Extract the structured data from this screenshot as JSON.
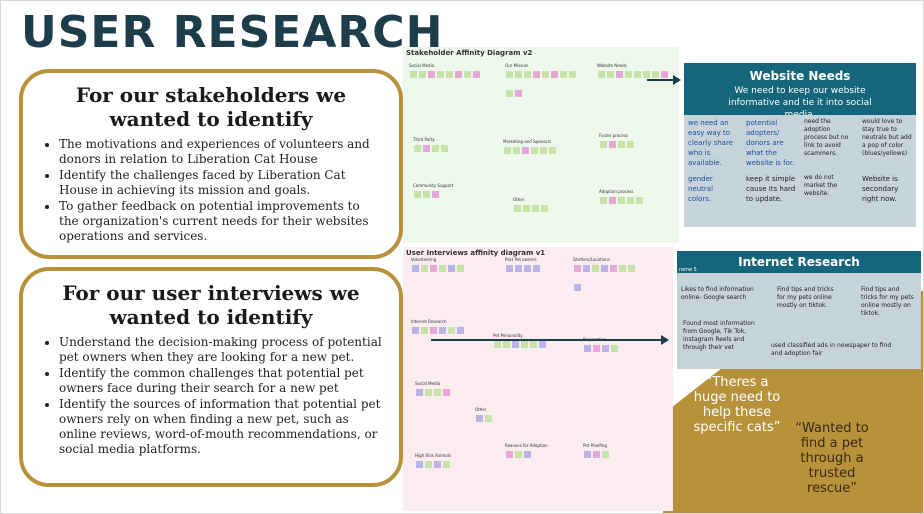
{
  "title": "USER RESEARCH",
  "stakeholders": {
    "heading": "For our stakeholders we wanted to identify",
    "bullets": [
      "The motivations and experiences of volunteers and donors in relation to Liberation Cat House",
      "Identify the challenges faced by Liberation Cat House in achieving its mission and goals.",
      "To gather feedback on potential improvements to the organization's current needs for their websites operations and services."
    ]
  },
  "interviews": {
    "heading": "For our user interviews we wanted to identify",
    "bullets": [
      "Understand the decision-making process of potential pet owners when they are looking for a new pet.",
      "Identify the common challenges that potential pet owners face during their search for a new pet",
      "Identify the sources of information that potential pet owners rely on when finding a new pet, such as online reviews, word-of-mouth recommendations, or social media platforms."
    ]
  },
  "diagram1": {
    "title": "Stakeholder Affinity Diagram v2",
    "groups": [
      {
        "label": "Social Media",
        "stickies": [
          "#c8e3a8",
          "#c8e3a8",
          "#e6a8d6",
          "#c8e3a8",
          "#c8e3a8",
          "#e6a8d6",
          "#c8e3a8",
          "#e6a8d6"
        ]
      },
      {
        "label": "Our Mission",
        "stickies": [
          "#c8e3a8",
          "#c8e3a8",
          "#c8e3a8",
          "#e6a8d6",
          "#c8e3a8",
          "#e6a8d6",
          "#c8e3a8",
          "#c8e3a8",
          "#c8e3a8",
          "#e6a8d6"
        ]
      },
      {
        "label": "Website Needs",
        "stickies": [
          "#c8e3a8",
          "#c8e3a8",
          "#e6a8d6",
          "#c8e3a8",
          "#c8e3a8",
          "#c8e3a8",
          "#c8e3a8",
          "#e6a8d6"
        ]
      },
      {
        "label": "Third Party",
        "stickies": [
          "#c8e3a8",
          "#e6a8d6",
          "#c8e3a8",
          "#c8e3a8"
        ]
      },
      {
        "label": "Marketing and Sponsors",
        "stickies": [
          "#c8e3a8",
          "#c8e3a8",
          "#e6a8d6",
          "#c8e3a8",
          "#c8e3a8",
          "#c8e3a8"
        ]
      },
      {
        "label": "Foster process",
        "stickies": [
          "#c8e3a8",
          "#e6a8d6",
          "#c8e3a8",
          "#c8e3a8"
        ]
      },
      {
        "label": "Community Support",
        "stickies": [
          "#c8e3a8",
          "#c8e3a8",
          "#e6a8d6"
        ]
      },
      {
        "label": "Other",
        "stickies": [
          "#c8e3a8",
          "#c8e3a8",
          "#c8e3a8",
          "#c8e3a8"
        ]
      },
      {
        "label": "Adoption process",
        "stickies": [
          "#c8e3a8",
          "#e6a8d6",
          "#c8e3a8",
          "#c8e3a8",
          "#c8e3a8"
        ]
      }
    ]
  },
  "diagram2": {
    "title": "User Interviews affinity diagram v1",
    "groups": [
      {
        "label": "Volunteering",
        "stickies": [
          "#b9b3e6",
          "#c8e3a8",
          "#e6a8d6",
          "#c8e3a8",
          "#b9b3e6",
          "#c8e3a8"
        ]
      },
      {
        "label": "Past Pet owners",
        "stickies": [
          "#b9b3e6",
          "#b9b3e6",
          "#b9b3e6",
          "#b9b3e6"
        ]
      },
      {
        "label": "Shelters/Locations",
        "stickies": [
          "#e6a8d6",
          "#b9b3e6",
          "#c8e3a8",
          "#b9b3e6",
          "#e6a8d6",
          "#c8e3a8",
          "#c8e3a8",
          "#b9b3e6"
        ]
      },
      {
        "label": "Internet Research",
        "stickies": [
          "#b9b3e6",
          "#c8e3a8",
          "#e6a8d6",
          "#b9b3e6",
          "#c8e3a8",
          "#b9b3e6"
        ]
      },
      {
        "label": "Pet Personality",
        "stickies": [
          "#c8e3a8",
          "#c8e3a8",
          "#b9b3e6",
          "#c8e3a8",
          "#c8e3a8",
          "#b9b3e6"
        ]
      },
      {
        "label": "Preparation",
        "stickies": [
          "#b9b3e6",
          "#e6a8d6",
          "#b9b3e6",
          "#c8e3a8"
        ]
      },
      {
        "label": "Social Media",
        "stickies": [
          "#b9b3e6",
          "#c8e3a8",
          "#c8e3a8",
          "#e6a8d6"
        ]
      },
      {
        "label": "Other",
        "stickies": [
          "#b9b3e6",
          "#c8e3a8"
        ]
      },
      {
        "label": "High Risk Animals",
        "stickies": [
          "#b9b3e6",
          "#c8e3a8",
          "#b9b3e6",
          "#c8e3a8"
        ]
      },
      {
        "label": "Reasons for Adoption",
        "stickies": [
          "#e6a8d6",
          "#c8e3a8",
          "#b9b3e6"
        ]
      },
      {
        "label": "Pet Proofing",
        "stickies": [
          "#b9b3e6",
          "#e6a8d6",
          "#c8e3a8"
        ]
      }
    ]
  },
  "website_needs": {
    "heading": "Website Needs",
    "subtitle": "We need to keep our website informative and tie it into social media.",
    "cells": [
      "we need an easy way to clearly share who is available.",
      "potential adopters/ donors are what the website is for.",
      "need the adoption process but no link to avoid scammers.",
      "would love to stay true to neutrals but add a pop of color (blues/yellows)",
      "gender neutral colors.",
      "keep it simple cause its hard to update.",
      "we do not market the website.",
      "Website is secondary right now."
    ]
  },
  "internet_research": {
    "heading": "Internet Research",
    "frame_label": "rame 5",
    "notes": [
      "Likes to find information online- Google search",
      "Find tips and tricks for my pets online mostly on tiktok.",
      "Find tips and tricks for my pets online mostly on tiktok.",
      "Found most information from Google, Tik Tok, instagram Reels and through their vet",
      "used classified ads in newspaper to find and adoption fair"
    ]
  },
  "quotes": {
    "q1": "“Theres a huge need to help these specific cats”",
    "q2": "“Wanted to find a pet through a trusted rescue”"
  },
  "colors": {
    "title": "#1d3d4a",
    "gold": "#b8923a",
    "teal": "#15667a",
    "cell_bg": "#c6d3db"
  }
}
